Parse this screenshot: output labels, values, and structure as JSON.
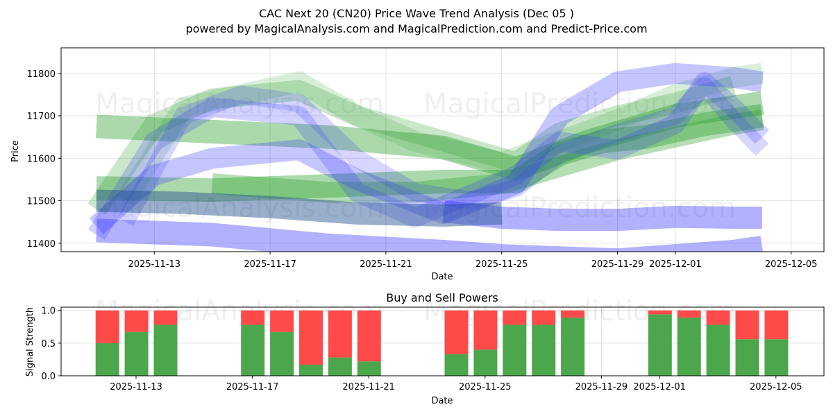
{
  "chart_data": [
    {
      "type": "area",
      "title": "CAC Next 20 (CN20) Price Wave Trend Analysis (Dec 05 )",
      "subtitle": "powered by MagicalAnalysis.com and MagicalPrediction.com and Predict-Price.com",
      "xlabel": "Date",
      "ylabel": "Price",
      "ylim": [
        11380,
        11860
      ],
      "x_tick_labels": [
        "2025-11-13",
        "2025-11-17",
        "2025-11-21",
        "2025-11-25",
        "2025-11-29",
        "2025-12-01",
        "2025-12-05"
      ],
      "y_tick_labels": [
        "11400",
        "11500",
        "11600",
        "11700",
        "11800"
      ],
      "watermarks": [
        "MagicalAnalysis.com",
        "MagicalPrediction.com",
        "MagicalAnalysis.com",
        "MagicalPrediction.com"
      ],
      "colors": {
        "green": "#2ca02c",
        "blue": "#3333ff",
        "darkblue": "#1f4e8f"
      },
      "series": [
        {
          "name": "green-band-1",
          "color": "green",
          "opacity": 0.4,
          "width": 34,
          "points": [
            [
              0,
              11675
            ],
            [
              8,
              11650
            ],
            [
              12,
              11625
            ],
            [
              14.5,
              11575
            ],
            [
              17,
              11640
            ],
            [
              20,
              11700
            ],
            [
              23,
              11730
            ]
          ]
        },
        {
          "name": "green-band-2",
          "color": "green",
          "opacity": 0.4,
          "width": 34,
          "points": [
            [
              0,
              11530
            ],
            [
              4,
              11525
            ],
            [
              8,
              11535
            ],
            [
              12,
              11545
            ],
            [
              14.5,
              11545
            ],
            [
              16,
              11610
            ],
            [
              17.5,
              11640
            ],
            [
              19,
              11650
            ],
            [
              21,
              11680
            ],
            [
              23,
              11700
            ]
          ]
        },
        {
          "name": "green-band-3",
          "color": "green",
          "opacity": 0.25,
          "width": 30,
          "points": [
            [
              0,
              11480
            ],
            [
              2,
              11680
            ],
            [
              4,
              11740
            ],
            [
              7,
              11760
            ],
            [
              9,
              11700
            ],
            [
              13,
              11620
            ],
            [
              14.5,
              11590
            ],
            [
              16,
              11660
            ],
            [
              18,
              11700
            ],
            [
              20,
              11730
            ],
            [
              22,
              11770
            ]
          ]
        },
        {
          "name": "green-band-4",
          "color": "green",
          "opacity": 0.18,
          "width": 30,
          "points": [
            [
              1,
              11500
            ],
            [
              3,
              11720
            ],
            [
              7,
              11780
            ],
            [
              9,
              11700
            ],
            [
              11,
              11640
            ],
            [
              14,
              11590
            ],
            [
              16,
              11640
            ],
            [
              18,
              11690
            ],
            [
              20,
              11750
            ],
            [
              22,
              11790
            ],
            [
              23,
              11800
            ]
          ]
        },
        {
          "name": "green-band-5",
          "color": "green",
          "opacity": 0.35,
          "width": 30,
          "points": [
            [
              4,
              11540
            ],
            [
              8,
              11520
            ],
            [
              11,
              11520
            ],
            [
              14,
              11540
            ],
            [
              16,
              11580
            ],
            [
              18,
              11620
            ],
            [
              20,
              11650
            ],
            [
              22,
              11680
            ],
            [
              23,
              11690
            ]
          ]
        },
        {
          "name": "blue-band-1",
          "color": "blue",
          "opacity": 0.38,
          "width": 34,
          "points": [
            [
              0,
              11430
            ],
            [
              4,
              11420
            ],
            [
              8,
              11395
            ],
            [
              12,
              11380
            ],
            [
              14,
              11370
            ],
            [
              16,
              11365
            ],
            [
              18,
              11360
            ],
            [
              20,
              11370
            ],
            [
              22,
              11380
            ],
            [
              23,
              11390
            ]
          ]
        },
        {
          "name": "blue-band-flat",
          "color": "blue",
          "opacity": 0.38,
          "width": 32,
          "points": [
            [
              12,
              11475
            ],
            [
              14,
              11460
            ],
            [
              16,
              11455
            ],
            [
              18,
              11455
            ],
            [
              20,
              11462
            ],
            [
              22,
              11460
            ],
            [
              23,
              11460
            ]
          ]
        },
        {
          "name": "blue-band-2",
          "color": "blue",
          "opacity": 0.28,
          "width": 30,
          "points": [
            [
              0,
              11440
            ],
            [
              2,
              11560
            ],
            [
              4,
              11600
            ],
            [
              7,
              11620
            ],
            [
              9,
              11550
            ],
            [
              12,
              11470
            ],
            [
              14.5,
              11540
            ],
            [
              16,
              11700
            ],
            [
              18,
              11780
            ],
            [
              20,
              11800
            ],
            [
              22,
              11790
            ],
            [
              23,
              11780
            ]
          ]
        },
        {
          "name": "blue-band-3",
          "color": "blue",
          "opacity": 0.22,
          "width": 28,
          "points": [
            [
              0,
              11420
            ],
            [
              2,
              11640
            ],
            [
              4,
              11720
            ],
            [
              7,
              11700
            ],
            [
              9,
              11520
            ],
            [
              11,
              11460
            ],
            [
              14.5,
              11560
            ],
            [
              16,
              11640
            ],
            [
              18,
              11620
            ],
            [
              20,
              11680
            ],
            [
              21,
              11780
            ],
            [
              22,
              11720
            ],
            [
              23,
              11650
            ]
          ]
        },
        {
          "name": "blue-band-4",
          "color": "blue",
          "opacity": 0.2,
          "width": 26,
          "points": [
            [
              1,
              11450
            ],
            [
              3,
              11700
            ],
            [
              5,
              11750
            ],
            [
              7,
              11730
            ],
            [
              9,
              11600
            ],
            [
              11,
              11520
            ],
            [
              13,
              11500
            ],
            [
              14.5,
              11530
            ],
            [
              16,
              11610
            ],
            [
              18,
              11660
            ],
            [
              20,
              11700
            ],
            [
              21,
              11770
            ],
            [
              22,
              11690
            ],
            [
              23,
              11620
            ]
          ]
        },
        {
          "name": "darkblue-band",
          "color": "darkblue",
          "opacity": 0.45,
          "width": 32,
          "points": [
            [
              0,
              11500
            ],
            [
              3,
              11495
            ],
            [
              6,
              11485
            ],
            [
              9,
              11470
            ],
            [
              12,
              11465
            ],
            [
              14,
              11470
            ]
          ]
        }
      ]
    },
    {
      "type": "bar",
      "title": "Buy and Sell Powers",
      "xlabel": "Date",
      "ylabel": "Signal Strength",
      "ylim": [
        0,
        1.05
      ],
      "x_tick_labels": [
        "2025-11-13",
        "2025-11-17",
        "2025-11-21",
        "2025-11-25",
        "2025-11-29",
        "2025-12-01",
        "2025-12-05"
      ],
      "y_tick_labels": [
        "0.0",
        "0.5",
        "1.0"
      ],
      "colors": {
        "buy": "#4ca64c",
        "sell": "#ff4a4a"
      },
      "x": [
        0,
        1,
        2,
        5,
        6,
        7,
        8,
        9,
        12,
        13,
        14,
        15,
        16,
        19,
        20,
        21,
        22,
        23
      ],
      "series": [
        {
          "name": "Buy",
          "values": [
            0.5,
            0.67,
            0.78,
            0.78,
            0.67,
            0.17,
            0.28,
            0.22,
            0.33,
            0.4,
            0.78,
            0.78,
            0.89,
            0.94,
            0.89,
            0.78,
            0.56,
            0.56
          ]
        },
        {
          "name": "Sell",
          "values": [
            0.5,
            0.33,
            0.22,
            0.22,
            0.33,
            0.83,
            0.72,
            0.78,
            0.67,
            0.6,
            0.22,
            0.22,
            0.11,
            0.06,
            0.11,
            0.22,
            0.44,
            0.44
          ]
        }
      ]
    }
  ]
}
